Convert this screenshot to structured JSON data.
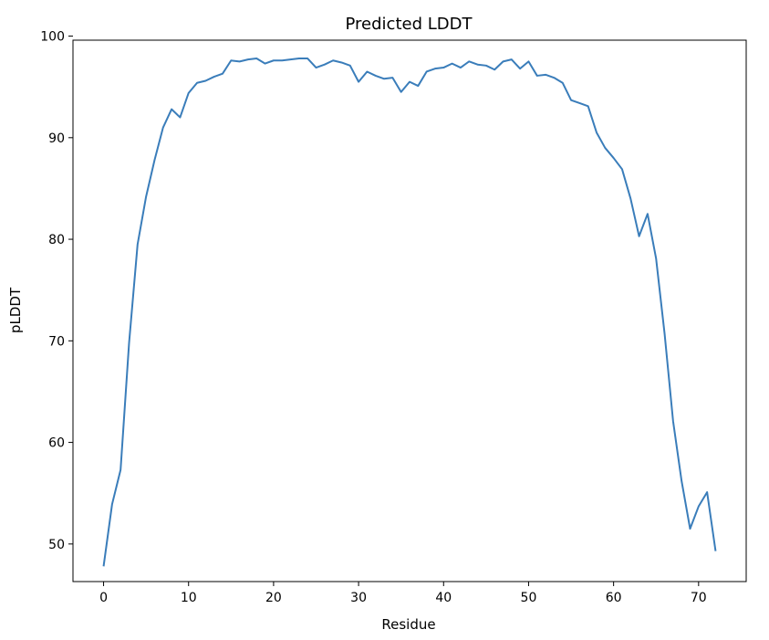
{
  "chart_data": {
    "type": "line",
    "title": "Predicted LDDT",
    "xlabel": "Residue",
    "ylabel": "pLDDT",
    "xlim": [
      -3.6,
      75.6
    ],
    "ylim": [
      46.3,
      99.6
    ],
    "xticks": [
      0,
      10,
      20,
      30,
      40,
      50,
      60,
      70
    ],
    "yticks": [
      50,
      60,
      70,
      80,
      90,
      100
    ],
    "grid": false,
    "line_color": "#3a7dba",
    "series": [
      {
        "x": [
          0,
          1,
          2,
          3,
          4,
          5,
          6,
          7,
          8,
          9,
          10,
          11,
          12,
          13,
          14,
          15,
          16,
          17,
          18,
          19,
          20,
          21,
          22,
          23,
          24,
          25,
          26,
          27,
          28,
          29,
          30,
          31,
          32,
          33,
          34,
          35,
          36,
          37,
          38,
          39,
          40,
          41,
          42,
          43,
          44,
          45,
          46,
          47,
          48,
          49,
          50,
          51,
          52,
          53,
          54,
          55,
          56,
          57,
          58,
          59,
          60,
          61,
          62,
          63,
          64,
          65,
          66,
          67,
          68,
          69,
          70,
          71,
          72
        ],
        "values": [
          47.8,
          53.9,
          57.3,
          69.8,
          79.5,
          84.2,
          87.8,
          91.0,
          92.8,
          92.0,
          94.4,
          95.4,
          95.6,
          96.0,
          96.3,
          97.6,
          97.5,
          97.7,
          97.8,
          97.3,
          97.6,
          97.6,
          97.7,
          97.8,
          97.8,
          96.9,
          97.2,
          97.6,
          97.4,
          97.1,
          95.5,
          96.5,
          96.1,
          95.8,
          95.9,
          94.5,
          95.5,
          95.1,
          96.5,
          96.8,
          96.9,
          97.3,
          96.9,
          97.5,
          97.2,
          97.1,
          96.7,
          97.5,
          97.7,
          96.8,
          97.5,
          96.1,
          96.2,
          95.9,
          95.4,
          93.7,
          93.4,
          93.1,
          90.5,
          89.0,
          88.0,
          86.9,
          84.0,
          80.3,
          82.5,
          78.1,
          70.7,
          62.1,
          56.2,
          51.5,
          53.7,
          55.1,
          49.3
        ]
      }
    ]
  }
}
